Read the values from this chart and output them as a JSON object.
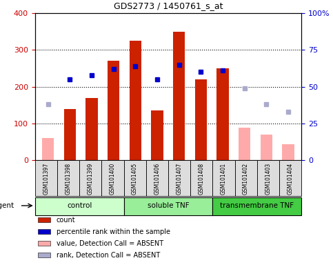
{
  "title": "GDS2773 / 1450761_s_at",
  "samples": [
    "GSM101397",
    "GSM101398",
    "GSM101399",
    "GSM101400",
    "GSM101405",
    "GSM101406",
    "GSM101407",
    "GSM101408",
    "GSM101401",
    "GSM101402",
    "GSM101403",
    "GSM101404"
  ],
  "groups": [
    {
      "label": "control",
      "start": 0,
      "end": 4,
      "color": "#ccffcc"
    },
    {
      "label": "soluble TNF",
      "start": 4,
      "end": 8,
      "color": "#99ee99"
    },
    {
      "label": "transmembrane TNF",
      "start": 8,
      "end": 12,
      "color": "#44cc44"
    }
  ],
  "bar_values": [
    null,
    140,
    170,
    270,
    325,
    135,
    350,
    220,
    250,
    null,
    null,
    null
  ],
  "bar_absent_values": [
    60,
    null,
    null,
    null,
    null,
    null,
    null,
    null,
    null,
    88,
    70,
    43
  ],
  "bar_color_present": "#cc2200",
  "bar_color_absent": "#ffaaaa",
  "rank_present_pct": [
    null,
    55,
    58,
    62,
    64,
    55,
    65,
    60,
    61,
    null,
    null,
    null
  ],
  "rank_absent_pct": [
    38,
    null,
    null,
    null,
    null,
    null,
    null,
    null,
    null,
    49,
    38,
    33
  ],
  "rank_color_present": "#0000cc",
  "rank_color_absent": "#aaaacc",
  "ylim_left": [
    0,
    400
  ],
  "ylim_right": [
    0,
    100
  ],
  "yticks_left": [
    0,
    100,
    200,
    300,
    400
  ],
  "ytick_labels_left": [
    "0",
    "100",
    "200",
    "300",
    "400"
  ],
  "yticks_right": [
    0,
    25,
    50,
    75,
    100
  ],
  "ytick_labels_right": [
    "0",
    "25",
    "50",
    "75",
    "100%"
  ],
  "grid_yticks": [
    100,
    200,
    300
  ],
  "left_tick_color": "#cc0000",
  "right_tick_color": "#0000cc",
  "bar_width": 0.55,
  "agent_label": "agent",
  "legend_items": [
    {
      "color": "#cc2200",
      "label": "count"
    },
    {
      "color": "#0000cc",
      "label": "percentile rank within the sample"
    },
    {
      "color": "#ffaaaa",
      "label": "value, Detection Call = ABSENT"
    },
    {
      "color": "#aaaacc",
      "label": "rank, Detection Call = ABSENT"
    }
  ],
  "fig_width": 4.83,
  "fig_height": 3.84,
  "fig_dpi": 100
}
